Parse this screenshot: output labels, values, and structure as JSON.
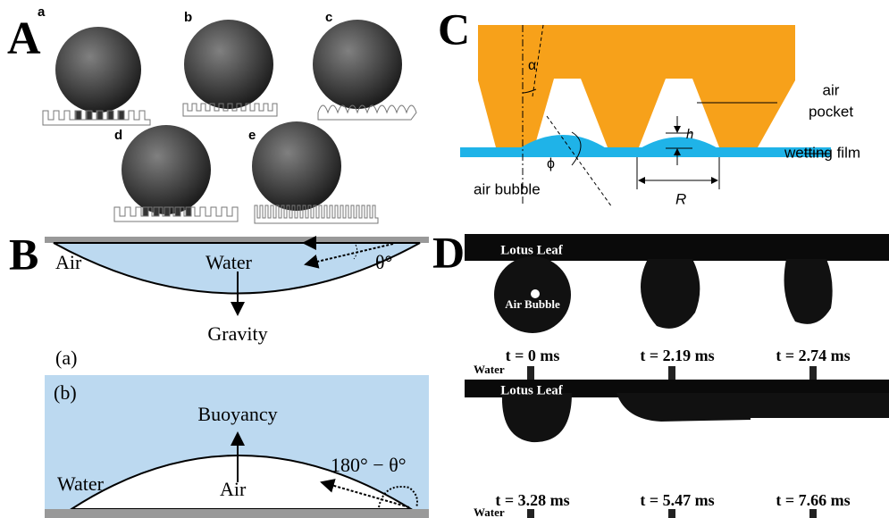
{
  "panels": {
    "A": {
      "label": "A",
      "subpanels": [
        "a",
        "b",
        "c",
        "d",
        "e"
      ]
    },
    "B": {
      "label": "B",
      "a": {
        "tag": "(a)",
        "air": "Air",
        "water": "Water",
        "angle": "θ°",
        "force": "Gravity"
      },
      "b": {
        "tag": "(b)",
        "water": "Water",
        "air": "Air",
        "angle": "180° − θ°",
        "force": "Buoyancy"
      }
    },
    "C": {
      "label": "C",
      "alpha": "α",
      "air_pocket": [
        "air",
        "pocket"
      ],
      "h": "h",
      "wetting_film": "wetting film",
      "phi": "ϕ",
      "air_bubble": "air bubble",
      "R": "R"
    },
    "D": {
      "label": "D",
      "top": {
        "leaf": "Lotus Leaf",
        "bubble": "Air Bubble",
        "times": [
          "t = 0 ms",
          "t = 2.19 ms",
          "t = 2.74 ms"
        ],
        "water": "Water"
      },
      "bottom": {
        "leaf": "Lotus Leaf",
        "times": [
          "t = 3.28 ms",
          "t = 5.47 ms",
          "t = 7.66 ms"
        ],
        "water": "Water"
      }
    }
  }
}
